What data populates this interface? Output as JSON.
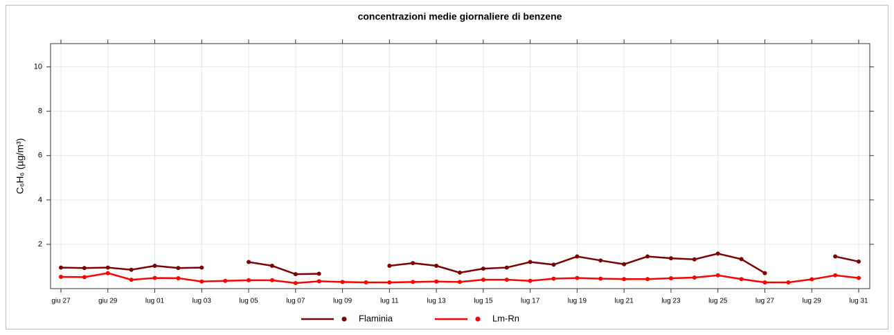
{
  "chart_data": {
    "type": "line",
    "title": "concentrazioni medie giornaliere di benzene",
    "ylabel": "C₆H₆ (µg/m³)",
    "categories": [
      "giu 27",
      null,
      "giu 29",
      null,
      "lug 01",
      null,
      "lug 03",
      null,
      "lug 05",
      null,
      "lug 07",
      null,
      "lug 09",
      null,
      "lug 11",
      null,
      "lug 13",
      null,
      "lug 15",
      null,
      "lug 17",
      null,
      "lug 19",
      null,
      "lug 21",
      null,
      "lug 23",
      null,
      "lug 25",
      null,
      "lug 27",
      null,
      "lug 29",
      null,
      "lug 31"
    ],
    "series": [
      {
        "name": "Flaminia",
        "color": "#7b0000",
        "values": [
          0.95,
          0.93,
          0.95,
          0.85,
          1.03,
          0.93,
          0.95,
          null,
          1.2,
          1.03,
          0.65,
          0.67,
          null,
          null,
          1.03,
          1.15,
          1.03,
          0.72,
          0.9,
          0.95,
          1.2,
          1.08,
          1.45,
          1.27,
          1.1,
          1.45,
          1.37,
          1.32,
          1.58,
          1.33,
          0.7,
          null,
          null,
          1.45,
          1.22
        ]
      },
      {
        "name": "Lm-Rn",
        "color": "#ff0000",
        "values": [
          0.53,
          0.52,
          0.7,
          0.4,
          0.48,
          0.47,
          0.32,
          0.35,
          0.38,
          0.38,
          0.25,
          0.33,
          0.3,
          0.28,
          0.28,
          0.3,
          0.32,
          0.3,
          0.4,
          0.4,
          0.35,
          0.45,
          0.48,
          0.45,
          0.43,
          0.43,
          0.47,
          0.5,
          0.6,
          0.43,
          0.28,
          0.28,
          0.42,
          0.6,
          0.48
        ]
      }
    ],
    "ylim": [
      0,
      11.05
    ],
    "yticks": [
      2,
      4,
      6,
      8,
      10
    ],
    "grid": true,
    "legend": "bottom"
  }
}
